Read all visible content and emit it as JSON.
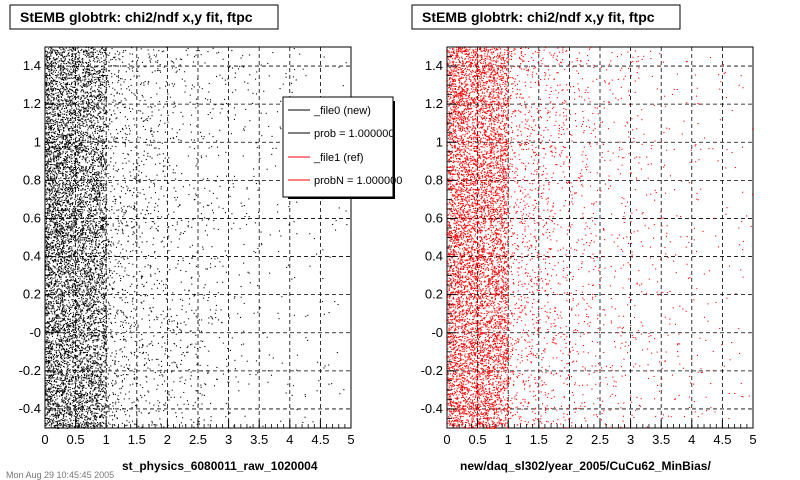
{
  "chart_data": [
    {
      "type": "scatter",
      "title": "StEMB globtrk: chi2/ndf x,y fit, ftpc",
      "xlabel": "st_physics_6080011_raw_1020004",
      "ylabel": "",
      "xlim": [
        0,
        5
      ],
      "ylim": [
        -0.5,
        1.5
      ],
      "x_ticks": [
        "0",
        "0.5",
        "1",
        "1.5",
        "2",
        "2.5",
        "3",
        "3.5",
        "4",
        "4.5",
        "5"
      ],
      "y_ticks": [
        "-0.4",
        "-0.2",
        "-0",
        "0.2",
        "0.4",
        "0.6",
        "0.8",
        "1",
        "1.2",
        "1.4"
      ],
      "grid": true,
      "legend_position": "top-right",
      "legend": [
        {
          "label": "_file0 (new)",
          "color": "#000000"
        },
        {
          "label": "prob = 1.000000",
          "color": "#000000"
        },
        {
          "label": "_file1 (ref)",
          "color": "#ff0000"
        },
        {
          "label": "probN = 1.000000",
          "color": "#ff0000"
        }
      ],
      "series": [
        {
          "color": "#000000",
          "distribution": {
            "x_range": [
              0,
              5
            ],
            "y_range": [
              -0.5,
              1.5
            ],
            "density_peak_x": 0.1,
            "density_decay_scale": 0.9,
            "dense_band_x_max": 1.0
          }
        }
      ]
    },
    {
      "type": "scatter",
      "title": "StEMB globtrk: chi2/ndf x,y fit, ftpc",
      "xlabel": "new/daq_sl302/year_2005/CuCu62_MinBias/",
      "ylabel": "",
      "xlim": [
        0,
        5
      ],
      "ylim": [
        -0.5,
        1.5
      ],
      "x_ticks": [
        "0",
        "0.5",
        "1",
        "1.5",
        "2",
        "2.5",
        "3",
        "3.5",
        "4",
        "4.5",
        "5"
      ],
      "y_ticks": [
        "-0.4",
        "-0.2",
        "-0",
        "0.2",
        "0.4",
        "0.6",
        "0.8",
        "1",
        "1.2",
        "1.4"
      ],
      "grid": true,
      "series": [
        {
          "color": "#ff0000",
          "distribution": {
            "x_range": [
              0,
              5
            ],
            "y_range": [
              -0.5,
              1.5
            ],
            "density_peak_x": 0.1,
            "density_decay_scale": 1.0,
            "dense_band_x_max": 1.0
          }
        }
      ]
    }
  ],
  "footer": {
    "timestamp": "Mon Aug 29 10:45:45 2005"
  }
}
